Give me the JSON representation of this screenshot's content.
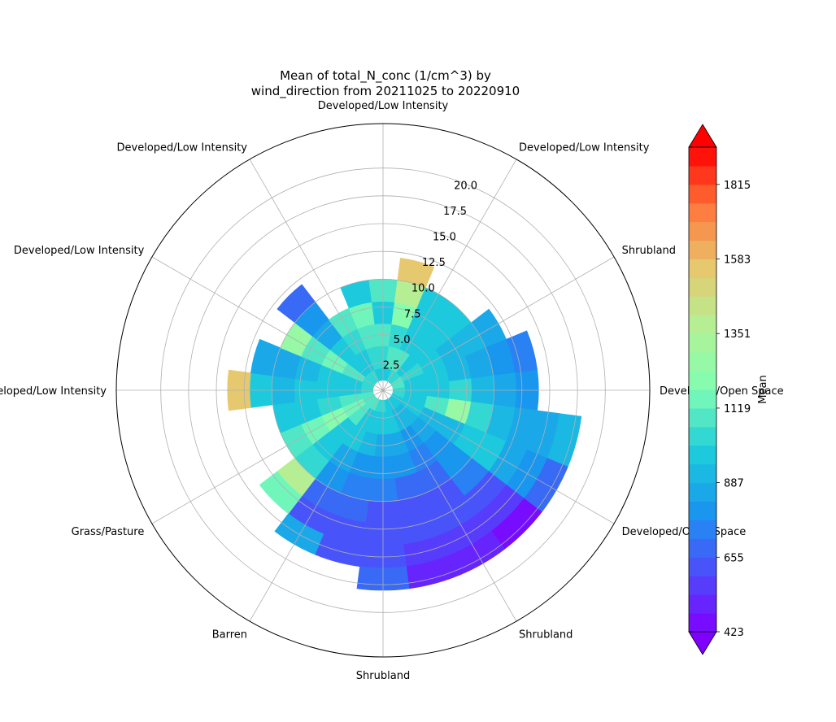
{
  "chart_data": {
    "type": "heatmap",
    "projection": "polar",
    "title_line1": "Mean of total_N_conc (1/cm^3) by",
    "title_line2": "wind_direction from 20211025 to 20220910",
    "direction_labels": [
      "Developed/Low Intensity",
      "Developed/Low Intensity",
      "Shrubland",
      "Developed/Open Space",
      "Developed/Open Space",
      "Shrubland",
      "Shrubland",
      "Barren",
      "Grass/Pasture",
      "Developed/Low Intensity",
      "Developed/Low Intensity",
      "Developed/Low Intensity"
    ],
    "direction_angles_deg": [
      0,
      30,
      60,
      90,
      120,
      150,
      180,
      210,
      240,
      270,
      300,
      330
    ],
    "radial_ticks": [
      "2.5",
      "5.0",
      "7.5",
      "10.0",
      "12.5",
      "15.0",
      "17.5",
      "20.0"
    ],
    "radial_tick_values": [
      2.5,
      5.0,
      7.5,
      10.0,
      12.5,
      15.0,
      17.5,
      20.0
    ],
    "rlim": [
      0,
      24
    ],
    "colorbar": {
      "label": "Mean",
      "min": 423,
      "max": 1931,
      "ticks": [
        "423",
        "655",
        "887",
        "1119",
        "1351",
        "1583",
        "1815"
      ],
      "tick_values": [
        423,
        655,
        887,
        1119,
        1351,
        1583,
        1815
      ],
      "colormap": "rainbow",
      "extend": "both"
    },
    "direction_bins_deg": [
      0,
      15,
      30,
      45,
      60,
      75,
      90,
      105,
      120,
      135,
      150,
      165,
      180,
      195,
      210,
      225,
      240,
      255,
      270,
      285,
      300,
      315,
      330,
      345
    ],
    "speed_bins": [
      1,
      3,
      5,
      7,
      9,
      11,
      13,
      15,
      17
    ],
    "mean_values": [
      [
        1000,
        1050,
        1080,
        1000,
        1100,
        null,
        null,
        null,
        null
      ],
      [
        1000,
        1100,
        1050,
        1200,
        1400,
        1550,
        null,
        null,
        null
      ],
      [
        1050,
        1100,
        1000,
        950,
        1000,
        null,
        null,
        null,
        null
      ],
      [
        1050,
        1000,
        960,
        960,
        980,
        null,
        null,
        null,
        null
      ],
      [
        1100,
        1050,
        990,
        900,
        900,
        860,
        null,
        null,
        null
      ],
      [
        1080,
        1000,
        950,
        900,
        850,
        800,
        760,
        null,
        null
      ],
      [
        1050,
        980,
        1000,
        1050,
        900,
        850,
        780,
        null,
        null
      ],
      [
        1050,
        1000,
        1100,
        1250,
        1050,
        900,
        850,
        880,
        900
      ],
      [
        1000,
        950,
        900,
        900,
        1000,
        950,
        880,
        800,
        700
      ],
      [
        1000,
        900,
        850,
        800,
        800,
        750,
        650,
        560,
        480
      ],
      [
        1000,
        900,
        800,
        750,
        700,
        650,
        600,
        550,
        500
      ],
      [
        1000,
        950,
        850,
        780,
        700,
        650,
        620,
        560,
        530
      ],
      [
        1050,
        980,
        880,
        800,
        720,
        650,
        620,
        600,
        700
      ],
      [
        1050,
        1000,
        900,
        820,
        750,
        680,
        600,
        650,
        null
      ],
      [
        1080,
        1000,
        950,
        880,
        780,
        700,
        650,
        850,
        null
      ],
      [
        1100,
        1100,
        1000,
        980,
        1050,
        1400,
        1150,
        null,
        null
      ],
      [
        1100,
        1150,
        1200,
        1150,
        1100,
        null,
        null,
        null,
        null
      ],
      [
        1100,
        1100,
        1050,
        1000,
        950,
        null,
        null,
        null,
        null
      ],
      [
        1050,
        1000,
        980,
        950,
        900,
        1000,
        1550,
        null,
        null
      ],
      [
        1050,
        1000,
        950,
        900,
        850,
        880,
        null,
        null,
        null
      ],
      [
        1050,
        1100,
        1150,
        1100,
        1250,
        null,
        null,
        null,
        null
      ],
      [
        1050,
        1000,
        950,
        850,
        780,
        700,
        null,
        null,
        null
      ],
      [
        1050,
        1000,
        1050,
        1100,
        null,
        null,
        null,
        null,
        null
      ],
      [
        1000,
        1050,
        1100,
        1150,
        1000,
        null,
        null,
        null,
        null
      ]
    ]
  }
}
